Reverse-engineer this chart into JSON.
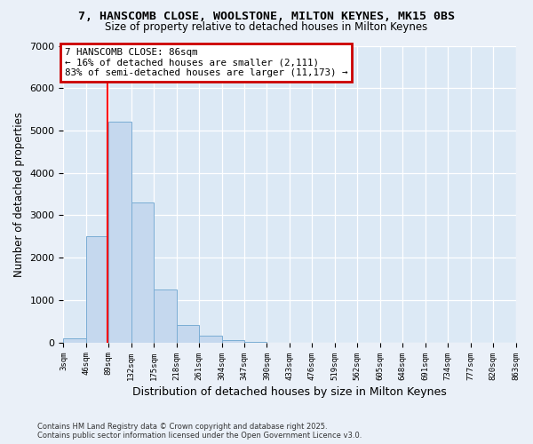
{
  "title1": "7, HANSCOMB CLOSE, WOOLSTONE, MILTON KEYNES, MK15 0BS",
  "title2": "Size of property relative to detached houses in Milton Keynes",
  "xlabel": "Distribution of detached houses by size in Milton Keynes",
  "ylabel": "Number of detached properties",
  "bin_edges": [
    3,
    46,
    89,
    132,
    175,
    218,
    261,
    304,
    347,
    390,
    433,
    476,
    519,
    562,
    605,
    648,
    691,
    734,
    777,
    820,
    863
  ],
  "bar_heights": [
    100,
    2500,
    5200,
    3300,
    1250,
    400,
    150,
    50,
    10,
    0,
    0,
    0,
    0,
    0,
    0,
    0,
    0,
    0,
    0,
    0
  ],
  "bar_color": "#c5d8ee",
  "bar_edge_color": "#7aadd4",
  "bg_color": "#dce9f5",
  "grid_color": "#ffffff",
  "red_line_x": 86,
  "annotation_text": "7 HANSCOMB CLOSE: 86sqm\n← 16% of detached houses are smaller (2,111)\n83% of semi-detached houses are larger (11,173) →",
  "annotation_box_facecolor": "#ffffff",
  "annotation_box_edgecolor": "#cc0000",
  "ylim": [
    0,
    7000
  ],
  "yticks": [
    0,
    1000,
    2000,
    3000,
    4000,
    5000,
    6000,
    7000
  ],
  "footer1": "Contains HM Land Registry data © Crown copyright and database right 2025.",
  "footer2": "Contains public sector information licensed under the Open Government Licence v3.0.",
  "fig_bg_color": "#eaf0f8"
}
